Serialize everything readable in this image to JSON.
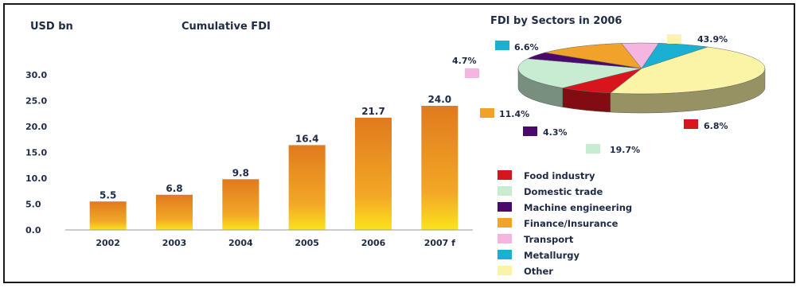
{
  "chart_data": [
    {
      "type": "bar",
      "title": "Cumulative FDI",
      "ylabel": "USD bn",
      "xlabel": "",
      "categories": [
        "2002",
        "2003",
        "2004",
        "2005",
        "2006",
        "2007 f"
      ],
      "values": [
        5.5,
        6.8,
        9.8,
        16.4,
        21.7,
        24.0
      ],
      "value_labels": [
        "5.5",
        "6.8",
        "9.8",
        "16.4",
        "21.7",
        "24.0"
      ],
      "ylim": [
        0,
        30
      ],
      "yticks": [
        "0.0",
        "5.0",
        "10.0",
        "15.0",
        "20.0",
        "25.0",
        "30.0"
      ],
      "grid": false
    },
    {
      "type": "pie",
      "title": "FDI by Sectors in 2006",
      "labels": [
        "Food industry",
        "Domestic trade",
        "Machine engineering",
        "Finance/Insurance",
        "Transport",
        "Metallurgy",
        "Other"
      ],
      "values": [
        6.8,
        19.7,
        4.3,
        11.4,
        4.7,
        6.6,
        43.9
      ],
      "value_labels": [
        "6.8%",
        "19.7%",
        "4.3%",
        "11.4%",
        "4.7%",
        "6.6%",
        "43.9%"
      ],
      "colors": [
        "#d8141c",
        "#c8ecd2",
        "#4b0a6b",
        "#f0a22a",
        "#f4b6e0",
        "#1ab0d4",
        "#fbf3a6"
      ],
      "legend": "bottom-right"
    }
  ]
}
